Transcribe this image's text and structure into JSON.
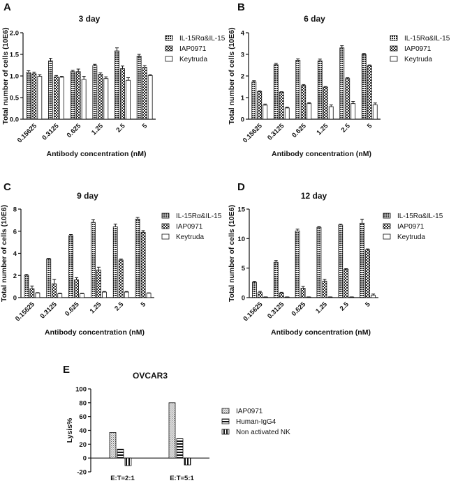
{
  "chart_data": [
    {
      "panel": "A",
      "type": "bar",
      "title": "3 day",
      "xlabel": "Antibody concentration (nM)",
      "ylabel": "Total number of cells (10E6)",
      "ylim": [
        0,
        2.0
      ],
      "yticks": [
        "0.0",
        "0.5",
        "1.0",
        "1.5",
        "2.0"
      ],
      "categories": [
        "0.15625",
        "0.3125",
        "0.625",
        "1.25",
        "2.5",
        "5"
      ],
      "legend_position": "right",
      "series": [
        {
          "name": "IL-15Rα&IL-15",
          "pattern": "dense",
          "values": [
            1.08,
            1.35,
            1.1,
            1.24,
            1.58,
            1.46
          ],
          "errors": [
            0.04,
            0.06,
            0.03,
            0.03,
            0.07,
            0.04
          ]
        },
        {
          "name": "IAP0971",
          "pattern": "check",
          "values": [
            1.05,
            0.98,
            1.1,
            1.04,
            1.17,
            1.2
          ],
          "errors": [
            0.04,
            0.03,
            0.06,
            0.03,
            0.06,
            0.04
          ]
        },
        {
          "name": "Keytruda",
          "pattern": "white",
          "values": [
            0.99,
            0.97,
            0.92,
            0.94,
            0.9,
            1.01
          ],
          "errors": [
            0.04,
            0.02,
            0.07,
            0.04,
            0.06,
            0.02
          ]
        }
      ]
    },
    {
      "panel": "B",
      "type": "bar",
      "title": "6 day",
      "xlabel": "Antibody concentration (nM)",
      "ylabel": "Total number of cells (10E6)",
      "ylim": [
        0,
        4
      ],
      "yticks": [
        "0",
        "1",
        "2",
        "3",
        "4"
      ],
      "categories": [
        "0.15625",
        "0.3125",
        "0.625",
        "1.25",
        "2.5",
        "5"
      ],
      "legend_position": "right",
      "series": [
        {
          "name": "IL-15Rα&IL-15",
          "pattern": "dense",
          "values": [
            1.72,
            2.52,
            2.73,
            2.7,
            3.3,
            3.0
          ],
          "errors": [
            0.06,
            0.06,
            0.06,
            0.08,
            0.1,
            0.04
          ]
        },
        {
          "name": "IAP0971",
          "pattern": "check",
          "values": [
            1.28,
            1.25,
            1.56,
            1.48,
            1.88,
            2.47
          ],
          "errors": [
            0.03,
            0.02,
            0.04,
            0.03,
            0.04,
            0.04
          ]
        },
        {
          "name": "Keytruda",
          "pattern": "white",
          "values": [
            0.65,
            0.52,
            0.72,
            0.58,
            0.72,
            0.67
          ],
          "errors": [
            0.05,
            0.03,
            0.04,
            0.08,
            0.1,
            0.08
          ]
        }
      ]
    },
    {
      "panel": "C",
      "type": "bar",
      "title": "9 day",
      "xlabel": "Antibody concentration (nM)",
      "ylabel": "Total number of cells (10E6)",
      "ylim": [
        0,
        8
      ],
      "yticks": [
        "0",
        "2",
        "4",
        "6",
        "8"
      ],
      "categories": [
        "0.15625",
        "0.3125",
        "0.625",
        "1.25",
        "2.5",
        "5"
      ],
      "legend_position": "right",
      "series": [
        {
          "name": "IL-15Rα&IL-15",
          "pattern": "dense",
          "values": [
            2.0,
            3.5,
            5.6,
            6.8,
            6.4,
            7.1
          ],
          "errors": [
            0.1,
            0.05,
            0.1,
            0.25,
            0.25,
            0.15
          ]
        },
        {
          "name": "IAP0971",
          "pattern": "check",
          "values": [
            0.8,
            1.25,
            1.6,
            2.5,
            3.4,
            5.9
          ],
          "errors": [
            0.25,
            0.4,
            0.2,
            0.25,
            0.08,
            0.15
          ]
        },
        {
          "name": "Keytruda",
          "pattern": "white",
          "values": [
            0.42,
            0.35,
            0.35,
            0.5,
            0.5,
            0.4
          ],
          "errors": [
            0.03,
            0.05,
            0.04,
            0.05,
            0.05,
            0.03
          ]
        }
      ]
    },
    {
      "panel": "D",
      "type": "bar",
      "title": "12 day",
      "xlabel": "Antibody concentration (nM)",
      "ylabel": "Total number of cells (10E6)",
      "ylim": [
        0,
        15
      ],
      "yticks": [
        "0",
        "5",
        "10",
        "15"
      ],
      "categories": [
        "0.15625",
        "0.3125",
        "0.625",
        "1.25",
        "2.5",
        "5"
      ],
      "legend_position": "right",
      "series": [
        {
          "name": "IL-15Rα&IL-15",
          "pattern": "dense",
          "values": [
            2.6,
            6.0,
            11.3,
            11.9,
            12.3,
            12.6
          ],
          "errors": [
            0.15,
            0.3,
            0.3,
            0.15,
            0.15,
            0.7
          ]
        },
        {
          "name": "IAP0971",
          "pattern": "check",
          "values": [
            0.85,
            0.75,
            1.6,
            2.8,
            4.8,
            8.1
          ],
          "errors": [
            0.2,
            0.15,
            0.3,
            0.3,
            0.1,
            0.15
          ]
        },
        {
          "name": "Keytruda",
          "pattern": "white",
          "values": [
            0.1,
            0.1,
            0.1,
            0.1,
            0.1,
            0.4
          ],
          "errors": [
            0.02,
            0.02,
            0.02,
            0.02,
            0.02,
            0.2
          ]
        }
      ]
    },
    {
      "panel": "E",
      "type": "bar",
      "title": "OVCAR3",
      "xlabel": "",
      "ylabel": "Lysis%",
      "ylim": [
        -20,
        100
      ],
      "yticks": [
        "-20",
        "0",
        "20",
        "40",
        "60",
        "80",
        "100"
      ],
      "categories": [
        "E:T=2:1",
        "E:T=5:1"
      ],
      "legend_position": "right",
      "series": [
        {
          "name": "IAP0971",
          "pattern": "fine",
          "values": [
            37,
            80
          ]
        },
        {
          "name": "Human-IgG4",
          "pattern": "hstripe",
          "values": [
            13,
            28
          ]
        },
        {
          "name": "Non activated NK",
          "pattern": "vstripe",
          "values": [
            -11,
            -10
          ]
        }
      ]
    }
  ]
}
